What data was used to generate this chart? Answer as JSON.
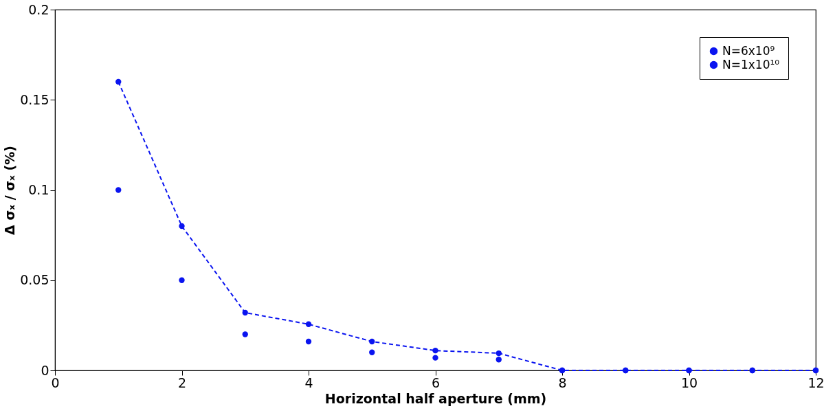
{
  "chart_data": {
    "type": "scatter",
    "xlabel": "Horizontal half aperture (mm)",
    "ylabel": "Δ σₓ / σₓ (%)",
    "x": [
      1,
      2,
      3,
      4,
      5,
      6,
      7,
      8,
      9,
      10,
      11,
      12
    ],
    "series": [
      {
        "name": "N=6x10⁹",
        "color": "#0a14f0",
        "values": [
          0.1,
          0.05,
          0.02,
          0.016,
          0.01,
          0.007,
          0.006,
          0,
          0,
          0,
          0,
          0
        ]
      },
      {
        "name": "N=1x10¹⁰",
        "color": "#0a14f0",
        "type": "line",
        "line_style": "dashed",
        "values": [
          0.16,
          0.08,
          0.032,
          0.0256,
          0.016,
          0.011,
          0.0095,
          0,
          0,
          0,
          0,
          0
        ]
      }
    ],
    "marker": "circle",
    "legend": "top right",
    "grid": false,
    "xlim": [
      0,
      12
    ],
    "xticks": [
      0,
      2,
      4,
      6,
      8,
      10,
      12
    ],
    "ylim": [
      0,
      0.2
    ],
    "yticks": [
      0,
      0.05,
      0.1,
      0.15,
      0.2
    ]
  }
}
